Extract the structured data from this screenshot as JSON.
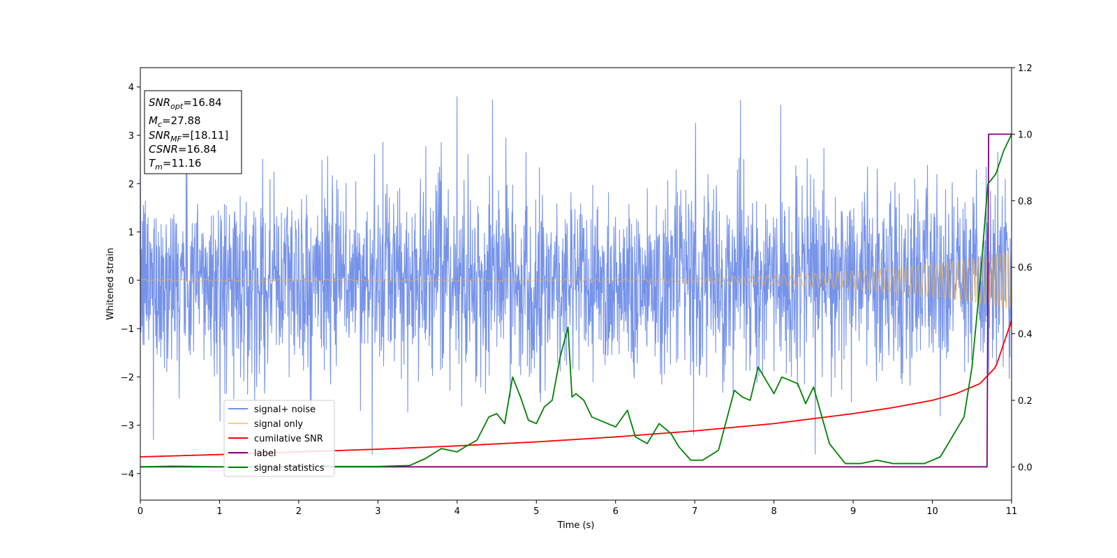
{
  "chart_data": {
    "type": "line",
    "xlabel": "Time (s)",
    "ylabel": "Whitened strain",
    "xlim": [
      0,
      11
    ],
    "ylim_left": [
      -4.55,
      4.4
    ],
    "ylim_right": [
      -0.1,
      1.2
    ],
    "x_ticks": [
      "0",
      "1",
      "2",
      "3",
      "4",
      "5",
      "6",
      "7",
      "8",
      "9",
      "10",
      "11"
    ],
    "y_left_ticks": [
      "4",
      "3",
      "2",
      "1",
      "0",
      "−1",
      "−2",
      "−3",
      "−4"
    ],
    "y_right_ticks": [
      "1.2",
      "1.0",
      "0.8",
      "0.6",
      "0.4",
      "0.2",
      "0.0"
    ],
    "legend_placement": "lower-left",
    "grid": false,
    "info_box": [
      {
        "name": "SNR",
        "sub": "opt",
        "value": "=16.84"
      },
      {
        "name": "M",
        "sub": "c",
        "value": "=27.88"
      },
      {
        "name": "SNR",
        "sub": "MF",
        "value": "=[18.11]"
      },
      {
        "name": "CSNR",
        "sub": "",
        "value": "=16.84"
      },
      {
        "name": "T",
        "sub": "m",
        "value": "=11.16"
      }
    ],
    "series": [
      {
        "name": "signal+ noise",
        "axis": "left",
        "color": "#4169e1",
        "kind": "noise",
        "noise_sigma": 0.95,
        "approx_range": [
          -3.6,
          3.8
        ]
      },
      {
        "name": "signal only",
        "axis": "left",
        "color": "#f5b041",
        "kind": "chirp",
        "amplitude_start": 0.02,
        "amplitude_end": 0.6,
        "approx_range": [
          -0.6,
          0.6
        ]
      },
      {
        "name": "cumilative SNR",
        "axis": "right",
        "color": "#ff0000",
        "x": [
          0,
          1,
          2,
          3,
          4,
          5,
          6,
          7,
          8,
          9,
          9.5,
          10,
          10.3,
          10.6,
          10.8,
          11
        ],
        "y": [
          0.03,
          0.037,
          0.045,
          0.053,
          0.063,
          0.075,
          0.09,
          0.108,
          0.13,
          0.16,
          0.178,
          0.2,
          0.22,
          0.25,
          0.3,
          0.44
        ]
      },
      {
        "name": "label",
        "axis": "right",
        "color": "#800080",
        "x": [
          0,
          10.69,
          10.71,
          11
        ],
        "y": [
          0.0,
          0.0,
          1.0,
          1.0
        ]
      },
      {
        "name": "signal statistics",
        "axis": "right",
        "color": "#008000",
        "x": [
          0,
          0.4,
          1.0,
          2.0,
          3.0,
          3.4,
          3.6,
          3.8,
          4.0,
          4.1,
          4.25,
          4.4,
          4.5,
          4.6,
          4.7,
          4.8,
          4.9,
          5.0,
          5.1,
          5.2,
          5.3,
          5.4,
          5.45,
          5.5,
          5.6,
          5.7,
          5.8,
          6.0,
          6.15,
          6.25,
          6.4,
          6.55,
          6.7,
          6.8,
          6.95,
          7.1,
          7.3,
          7.5,
          7.6,
          7.7,
          7.8,
          7.9,
          8.0,
          8.1,
          8.3,
          8.4,
          8.5,
          8.7,
          8.9,
          9.1,
          9.3,
          9.5,
          9.7,
          9.9,
          10.1,
          10.3,
          10.4,
          10.5,
          10.6,
          10.7,
          10.8,
          10.9,
          11.0
        ],
        "y": [
          0.0,
          0.002,
          0.0,
          0.001,
          0.001,
          0.004,
          0.025,
          0.055,
          0.045,
          0.06,
          0.08,
          0.15,
          0.16,
          0.13,
          0.27,
          0.21,
          0.14,
          0.13,
          0.18,
          0.2,
          0.33,
          0.42,
          0.21,
          0.22,
          0.2,
          0.15,
          0.14,
          0.12,
          0.17,
          0.09,
          0.07,
          0.13,
          0.1,
          0.06,
          0.02,
          0.02,
          0.05,
          0.23,
          0.21,
          0.2,
          0.3,
          0.26,
          0.22,
          0.27,
          0.25,
          0.19,
          0.24,
          0.07,
          0.01,
          0.01,
          0.02,
          0.01,
          0.01,
          0.01,
          0.03,
          0.11,
          0.15,
          0.3,
          0.55,
          0.85,
          0.88,
          0.95,
          1.0
        ]
      }
    ]
  }
}
